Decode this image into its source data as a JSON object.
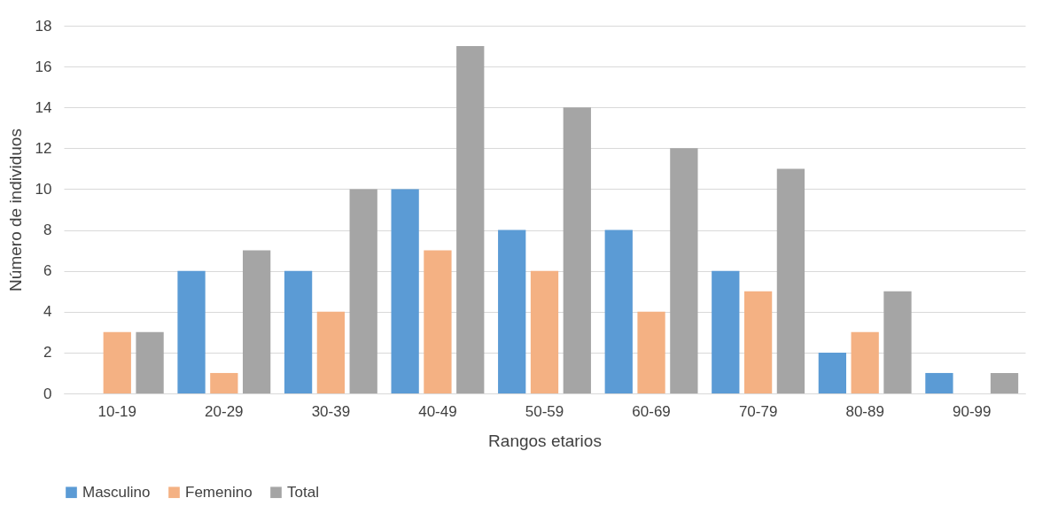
{
  "chart_data": {
    "type": "bar",
    "xlabel": "Rangos etarios",
    "ylabel": "Número de individuos",
    "categories": [
      "10-19",
      "20-29",
      "30-39",
      "40-49",
      "50-59",
      "60-69",
      "70-79",
      "80-89",
      "90-99"
    ],
    "series": [
      {
        "name": "Masculino",
        "color": "#5b9bd5",
        "values": [
          0,
          6,
          6,
          10,
          8,
          8,
          6,
          2,
          1
        ]
      },
      {
        "name": "Femenino",
        "color": "#f4b183",
        "values": [
          3,
          1,
          4,
          7,
          6,
          4,
          5,
          3,
          0
        ]
      },
      {
        "name": "Total",
        "color": "#a5a5a5",
        "values": [
          3,
          7,
          10,
          17,
          14,
          12,
          11,
          5,
          1
        ]
      }
    ],
    "ylim": [
      0,
      18
    ],
    "yticks": [
      0,
      2,
      4,
      6,
      8,
      10,
      12,
      14,
      16,
      18
    ],
    "grid": "y",
    "legend": "bottom"
  }
}
